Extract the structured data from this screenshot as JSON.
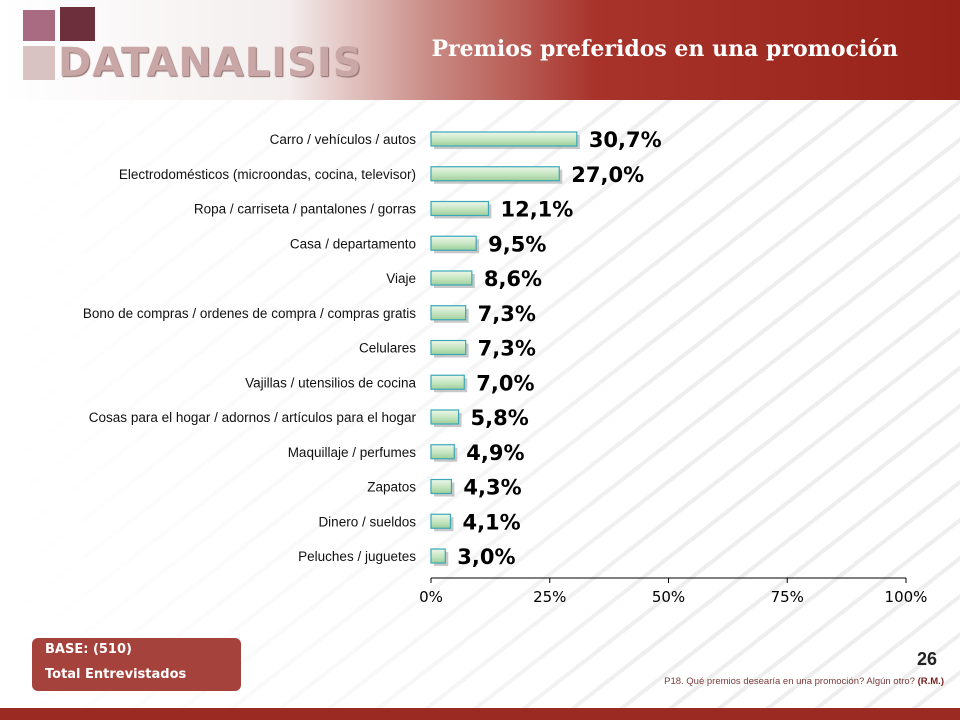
{
  "header": {
    "logo_text": "DATANALISIS",
    "title": "Premios preferidos en una promoción",
    "logo_colors": [
      "#a86b82",
      "#6e2f3c",
      "#d9c2c2"
    ]
  },
  "chart_data": {
    "type": "bar",
    "orientation": "horizontal",
    "categories": [
      "Carro / vehículos / autos",
      "Electrodomésticos (microondas, cocina, televisor)",
      "Ropa / carriseta / pantalones / gorras",
      "Casa / departamento",
      "Viaje",
      "Bono de compras / ordenes de compra / compras gratis",
      "Celulares",
      "Vajillas / utensilios de cocina",
      "Cosas para el hogar / adornos / artículos para el hogar",
      "Maquillaje / perfumes",
      "Zapatos",
      "Dinero / sueldos",
      "Peluches / juguetes"
    ],
    "values": [
      30.7,
      27.0,
      12.1,
      9.5,
      8.6,
      7.3,
      7.3,
      7.0,
      5.8,
      4.9,
      4.3,
      4.1,
      3.0
    ],
    "value_labels": [
      "30,7%",
      "27,0%",
      "12,1%",
      "9,5%",
      "8,6%",
      "7,3%",
      "7,3%",
      "7,0%",
      "5,8%",
      "4,9%",
      "4,3%",
      "4,1%",
      "3,0%"
    ],
    "xlim": [
      0,
      100
    ],
    "x_ticks": [
      0,
      25,
      50,
      75,
      100
    ],
    "x_tick_labels": [
      "0%",
      "25%",
      "50%",
      "75%",
      "100%"
    ],
    "grid": false,
    "legend": "none",
    "bar_color": "#c8e6c4",
    "bar_border": "#3aa8b8"
  },
  "base": {
    "line1": "BASE:  (510)",
    "line2": "Total Entrevistados",
    "color": "#a6423c"
  },
  "page_number": "26",
  "footnote": {
    "question": "P18. Qué premios desearía en una promoción? Algún otro?",
    "tag": "(R.M.)"
  }
}
